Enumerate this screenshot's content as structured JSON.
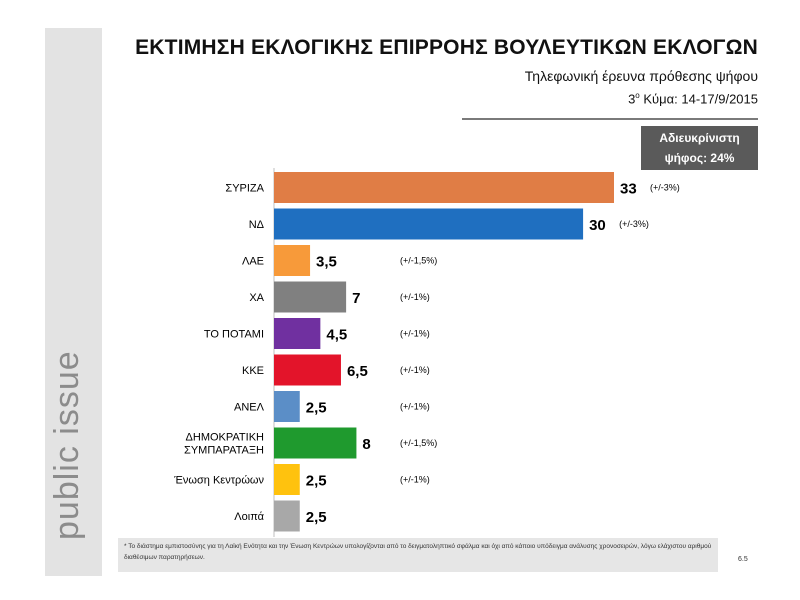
{
  "branding": {
    "text": "public issue"
  },
  "header": {
    "title": "ΕΚΤΙΜΗΣΗ ΕΚΛΟΓΙΚΗΣ ΕΠΙΡΡΟΗΣ ΒΟΥΛΕΥΤΙΚΩΝ ΕΚΛΟΓΩΝ",
    "subtitle": "Τηλεφωνική έρευνα πρόθεσης ψήφου",
    "wave_num": "3",
    "wave_sup": "ο",
    "wave_rest": " Κύμα: 14-17/9/2015"
  },
  "undecided": {
    "line1": "Αδιευκρίνιστη",
    "line2": "ψήφος: 24%"
  },
  "footnote": {
    "text": "* Το διάστημα εμπιστοσύνης για τη Λαϊκή Ενότητα και την Ένωση Κεντρώων υπολογίζονται από το δειγματοληπτικό σφάλμα και όχι από κάποιο υπόδειγμα ανάλυσης χρονοσειρών, λόγω ελάχιστου αριθμού διαθέσιμων παρατηρήσεων.",
    "page": "6.5"
  },
  "chart_data": {
    "type": "bar",
    "orientation": "horizontal",
    "categories": [
      [
        "ΣΥΡΙΖΑ"
      ],
      [
        "ΝΔ"
      ],
      [
        "ΛΑΕ"
      ],
      [
        "ΧΑ"
      ],
      [
        "ΤΟ ΠΟΤΑΜΙ"
      ],
      [
        "ΚΚΕ"
      ],
      [
        "ΑΝΕΛ"
      ],
      [
        "ΔΗΜΟΚΡΑΤΙΚΗ",
        "ΣΥΜΠΑΡΑΤΑΞΗ"
      ],
      [
        "Ένωση Κεντρώων"
      ],
      [
        "Λοιπά"
      ]
    ],
    "values": [
      33,
      30,
      3.5,
      7,
      4.5,
      6.5,
      2.5,
      8,
      2.5,
      2.5
    ],
    "value_labels": [
      "33",
      "30",
      "3,5",
      "7",
      "4,5",
      "6,5",
      "2,5",
      "8",
      "2,5",
      "2,5"
    ],
    "error_labels": [
      "(+/-3%)",
      "(+/-3%)",
      "(+/-1,5%)",
      "(+/-1%)",
      "(+/-1%)",
      "(+/-1%)",
      "(+/-1%)",
      "(+/-1,5%)",
      "(+/-1%)",
      ""
    ],
    "colors": [
      "#e07d45",
      "#1f6fc0",
      "#f79a3a",
      "#808080",
      "#7030a0",
      "#e3142a",
      "#5b8ec7",
      "#1f9a2e",
      "#ffc20e",
      "#a8a8a8"
    ],
    "xlim": [
      0,
      35
    ],
    "grid": false,
    "legend": "none"
  }
}
